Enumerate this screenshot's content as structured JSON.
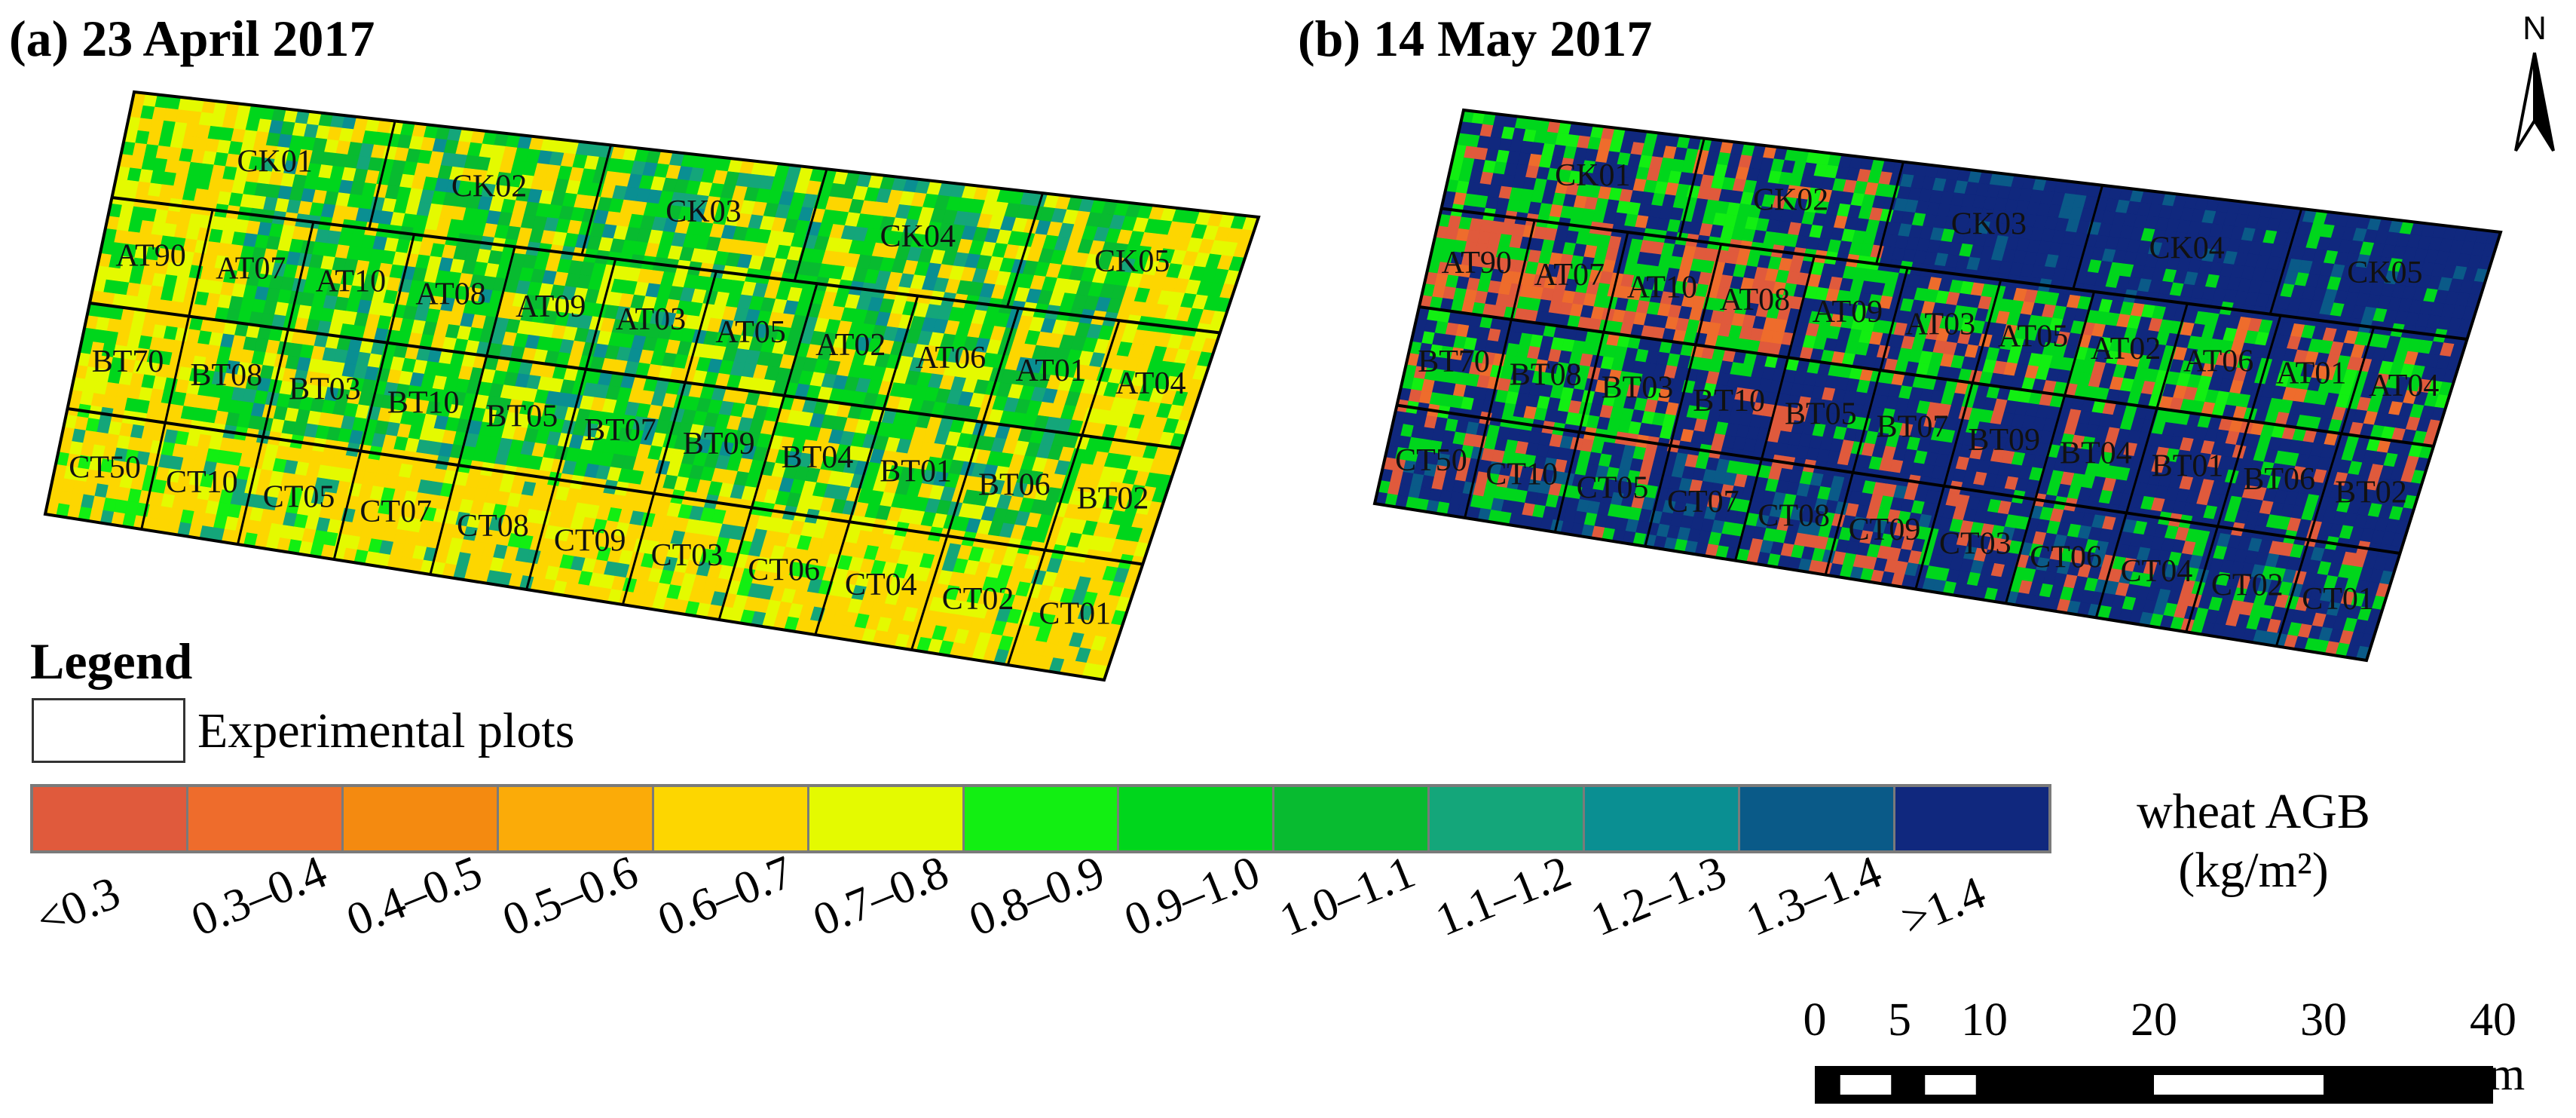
{
  "panels": [
    {
      "title": "(a)  23 April 2017",
      "date": "23 April 2017"
    },
    {
      "title": "(b)  14 May 2017",
      "date": "14 May 2017"
    }
  ],
  "north_label": "N",
  "legend": {
    "title": "Legend",
    "plots_label": "Experimental plots",
    "unit_line1": "wheat AGB",
    "unit_line2": "(kg/m²)",
    "classes": [
      {
        "label": "<0.3",
        "color": "#e05a3c"
      },
      {
        "label": "0.3–0.4",
        "color": "#ee6c2c"
      },
      {
        "label": "0.4–0.5",
        "color": "#f48a10"
      },
      {
        "label": "0.5–0.6",
        "color": "#fbab08"
      },
      {
        "label": "0.6–0.7",
        "color": "#fdd600"
      },
      {
        "label": "0.7–0.8",
        "color": "#e4fa00"
      },
      {
        "label": "0.8–0.9",
        "color": "#12ef12"
      },
      {
        "label": "0.9–1.0",
        "color": "#00d61c"
      },
      {
        "label": "1.0–1.1",
        "color": "#08bb30"
      },
      {
        "label": "1.1–1.2",
        "color": "#14a67a"
      },
      {
        "label": "1.2–1.3",
        "color": "#0a8f92"
      },
      {
        "label": "1.3–1.4",
        "color": "#0a5a88"
      },
      {
        "label": ">1.4",
        "color": "#10287e"
      }
    ]
  },
  "scale_bar": {
    "ticks": [
      "0",
      "5",
      "10",
      "20",
      "30",
      "40"
    ],
    "tick_values": [
      0,
      5,
      10,
      20,
      30,
      40
    ],
    "unit": "m"
  },
  "plot_rows": [
    [
      "CK01",
      "CK02",
      "CK03",
      "CK04",
      "CK05"
    ],
    [
      "AT90",
      "AT07",
      "AT10",
      "AT08",
      "AT09",
      "AT03",
      "AT05",
      "AT02",
      "AT06",
      "AT01",
      "AT04"
    ],
    [
      "BT70",
      "BT08",
      "BT03",
      "BT10",
      "BT05",
      "BT07",
      "BT09",
      "BT04",
      "BT01",
      "BT06",
      "BT02"
    ],
    [
      "CT50",
      "CT10",
      "CT05",
      "CT07",
      "CT08",
      "CT09",
      "CT03",
      "CT06",
      "CT04",
      "CT02",
      "CT01"
    ]
  ]
}
